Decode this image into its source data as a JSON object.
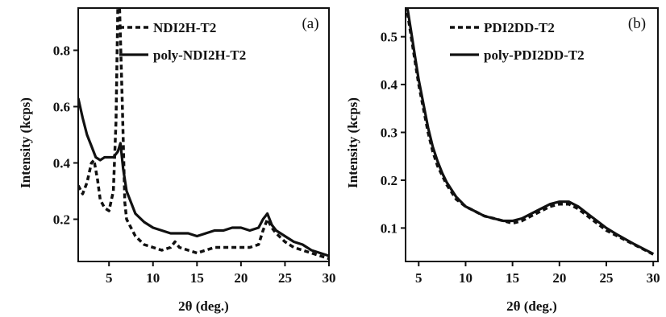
{
  "chart_data": [
    {
      "type": "line",
      "panel_label": "(a)",
      "xlabel": "2θ (deg.)",
      "ylabel": "Intensity (kcps)",
      "xlim": [
        1.5,
        30
      ],
      "ylim": [
        0.05,
        0.95
      ],
      "xticks": [
        5,
        10,
        15,
        20,
        25,
        30
      ],
      "yticks": [
        0.2,
        0.4,
        0.6,
        0.8
      ],
      "yticklabels": [
        "0.2",
        "0.4",
        "0.6",
        "0.8"
      ],
      "legend_position": "top-right",
      "grid": false,
      "series": [
        {
          "name": "NDI2H-T2",
          "style": "dashed",
          "color": "#111111",
          "x": [
            1.5,
            2,
            2.5,
            3,
            3.3,
            3.7,
            4,
            4.5,
            5,
            5.5,
            5.8,
            6,
            6.2,
            6.5,
            6.8,
            7,
            8,
            9,
            10,
            11,
            12,
            12.5,
            13,
            14,
            15,
            16,
            17,
            18,
            19,
            20,
            21,
            22,
            22.5,
            23,
            23.5,
            24,
            25,
            26,
            27,
            28,
            29,
            30
          ],
          "y": [
            0.32,
            0.29,
            0.33,
            0.4,
            0.41,
            0.34,
            0.27,
            0.24,
            0.23,
            0.3,
            0.55,
            0.95,
            0.95,
            0.62,
            0.26,
            0.2,
            0.14,
            0.11,
            0.1,
            0.09,
            0.1,
            0.12,
            0.1,
            0.09,
            0.08,
            0.09,
            0.1,
            0.1,
            0.1,
            0.1,
            0.1,
            0.11,
            0.16,
            0.2,
            0.17,
            0.15,
            0.12,
            0.1,
            0.09,
            0.08,
            0.07,
            0.06
          ]
        },
        {
          "name": "poly-NDI2H-T2",
          "style": "solid",
          "color": "#111111",
          "x": [
            1.5,
            2,
            2.5,
            3,
            3.5,
            4,
            4.5,
            5,
            5.5,
            6,
            6.3,
            6.6,
            7,
            8,
            9,
            10,
            11,
            12,
            13,
            14,
            15,
            16,
            17,
            18,
            19,
            20,
            21,
            22,
            22.5,
            23,
            23.5,
            24,
            25,
            26,
            27,
            28,
            29,
            30
          ],
          "y": [
            0.63,
            0.56,
            0.5,
            0.46,
            0.42,
            0.41,
            0.42,
            0.42,
            0.42,
            0.44,
            0.47,
            0.38,
            0.3,
            0.22,
            0.19,
            0.17,
            0.16,
            0.15,
            0.15,
            0.15,
            0.14,
            0.15,
            0.16,
            0.16,
            0.17,
            0.17,
            0.16,
            0.17,
            0.2,
            0.22,
            0.18,
            0.16,
            0.14,
            0.12,
            0.11,
            0.09,
            0.08,
            0.07
          ]
        }
      ]
    },
    {
      "type": "line",
      "panel_label": "(b)",
      "xlabel": "2θ (deg.)",
      "ylabel": "Intensity (kcps)",
      "xlim": [
        3.6,
        30.5
      ],
      "ylim": [
        0.03,
        0.56
      ],
      "xticks": [
        5,
        10,
        15,
        20,
        25,
        30
      ],
      "yticks": [
        0.1,
        0.2,
        0.3,
        0.4,
        0.5
      ],
      "yticklabels": [
        "0.1",
        "0.2",
        "0.3",
        "0.4",
        "0.5"
      ],
      "legend_position": "top-right",
      "grid": false,
      "series": [
        {
          "name": "PDI2DD-T2",
          "style": "dashed",
          "color": "#111111",
          "x": [
            3.8,
            4.2,
            4.6,
            5,
            5.5,
            6,
            6.5,
            7,
            7.5,
            8,
            9,
            10,
            11,
            12,
            13,
            14,
            15,
            16,
            17,
            18,
            19,
            20,
            21,
            22,
            23,
            24,
            25,
            26,
            27,
            28,
            29,
            30
          ],
          "y": [
            0.55,
            0.5,
            0.45,
            0.4,
            0.35,
            0.3,
            0.26,
            0.23,
            0.21,
            0.19,
            0.16,
            0.145,
            0.135,
            0.125,
            0.12,
            0.115,
            0.11,
            0.115,
            0.125,
            0.135,
            0.145,
            0.15,
            0.15,
            0.14,
            0.125,
            0.11,
            0.095,
            0.085,
            0.075,
            0.065,
            0.055,
            0.045
          ]
        },
        {
          "name": "poly-PDI2DD-T2",
          "style": "solid",
          "color": "#111111",
          "x": [
            3.8,
            4.2,
            4.6,
            5,
            5.5,
            6,
            6.5,
            7,
            7.5,
            8,
            9,
            10,
            11,
            12,
            13,
            14,
            15,
            16,
            17,
            18,
            19,
            20,
            21,
            22,
            23,
            24,
            25,
            26,
            27,
            28,
            29,
            30
          ],
          "y": [
            0.56,
            0.51,
            0.46,
            0.41,
            0.36,
            0.31,
            0.27,
            0.24,
            0.215,
            0.195,
            0.165,
            0.145,
            0.135,
            0.125,
            0.12,
            0.115,
            0.115,
            0.12,
            0.13,
            0.14,
            0.15,
            0.155,
            0.155,
            0.145,
            0.13,
            0.115,
            0.1,
            0.088,
            0.077,
            0.066,
            0.056,
            0.046
          ]
        }
      ]
    }
  ]
}
